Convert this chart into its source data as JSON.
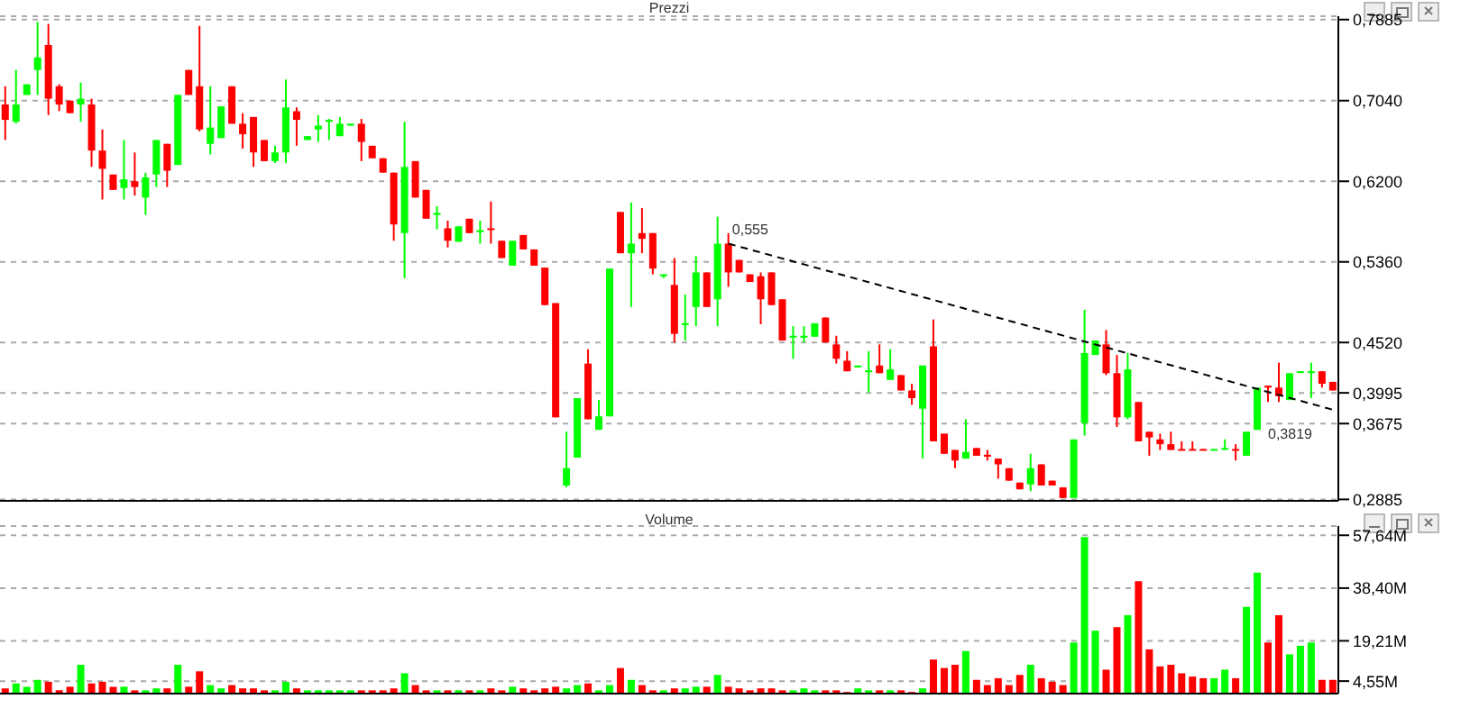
{
  "chart_data": [
    {
      "type": "candlestick",
      "title": "Prezzi",
      "categories": [
        null,
        null,
        null,
        null,
        null,
        null,
        null,
        null,
        null,
        null,
        null,
        null,
        null,
        null,
        null,
        null,
        null,
        null,
        null,
        null,
        null,
        null,
        null,
        null,
        null,
        null,
        null,
        null,
        null,
        null,
        null,
        null,
        null,
        null,
        null,
        null,
        null,
        null,
        null,
        null,
        null,
        null,
        null,
        null,
        null,
        null,
        null,
        null,
        null,
        null,
        null,
        null,
        null,
        null,
        null,
        null,
        null,
        null,
        null,
        null,
        null,
        null,
        null,
        null,
        null,
        null,
        null,
        null,
        null,
        null,
        null,
        null,
        null,
        null,
        null,
        null,
        null,
        null,
        null,
        null,
        null,
        null,
        null,
        null,
        null,
        null,
        null,
        null,
        null,
        null,
        null,
        null,
        null,
        null,
        null,
        null,
        null,
        null,
        null,
        null,
        null,
        null,
        null,
        null,
        null,
        null,
        null,
        null,
        null,
        null,
        null,
        null,
        null,
        null,
        null,
        null,
        null,
        null,
        null,
        null,
        null,
        null,
        null,
        null
      ],
      "ohlc": [
        [
          0.7,
          0.719,
          0.663,
          0.684
        ],
        [
          0.682,
          0.736,
          0.68,
          0.7
        ],
        [
          0.71,
          0.721,
          0.71,
          0.721
        ],
        [
          0.736,
          0.786,
          0.71,
          0.749
        ],
        [
          0.762,
          0.784,
          0.689,
          0.706
        ],
        [
          0.719,
          0.721,
          0.693,
          0.7
        ],
        [
          0.704,
          0.704,
          0.691,
          0.691
        ],
        [
          0.7,
          0.723,
          0.682,
          0.706
        ],
        [
          0.7,
          0.706,
          0.635,
          0.652
        ],
        [
          0.652,
          0.674,
          0.601,
          0.633
        ],
        [
          0.627,
          0.627,
          0.611,
          0.611
        ],
        [
          0.613,
          0.663,
          0.601,
          0.622
        ],
        [
          0.62,
          0.65,
          0.605,
          0.614
        ],
        [
          0.603,
          0.629,
          0.585,
          0.624
        ],
        [
          0.627,
          0.663,
          0.614,
          0.663
        ],
        [
          0.659,
          0.659,
          0.614,
          0.631
        ],
        [
          0.637,
          0.71,
          0.637,
          0.71
        ],
        [
          0.736,
          0.736,
          0.71,
          0.71
        ],
        [
          0.719,
          0.782,
          0.672,
          0.674
        ],
        [
          0.659,
          0.719,
          0.648,
          0.676
        ],
        [
          0.665,
          0.698,
          0.665,
          0.698
        ],
        [
          0.719,
          0.719,
          0.68,
          0.68
        ],
        [
          0.68,
          0.691,
          0.654,
          0.669
        ],
        [
          0.687,
          0.687,
          0.635,
          0.65
        ],
        [
          0.663,
          0.663,
          0.641,
          0.641
        ],
        [
          0.641,
          0.657,
          0.639,
          0.65
        ],
        [
          0.65,
          0.726,
          0.639,
          0.697
        ],
        [
          0.693,
          0.697,
          0.657,
          0.684
        ],
        [
          0.663,
          0.667,
          0.663,
          0.667
        ],
        [
          0.674,
          0.689,
          0.661,
          0.678
        ],
        [
          0.682,
          0.685,
          0.663,
          0.684
        ],
        [
          0.667,
          0.687,
          0.667,
          0.68
        ],
        [
          0.678,
          0.68,
          0.678,
          0.68
        ],
        [
          0.68,
          0.685,
          0.641,
          0.661
        ],
        [
          0.657,
          0.657,
          0.644,
          0.644
        ],
        [
          0.644,
          0.644,
          0.629,
          0.629
        ],
        [
          0.629,
          0.629,
          0.558,
          0.575
        ],
        [
          0.566,
          0.682,
          0.519,
          0.635
        ],
        [
          0.641,
          0.641,
          0.603,
          0.603
        ],
        [
          0.611,
          0.611,
          0.581,
          0.581
        ],
        [
          0.585,
          0.594,
          0.57,
          0.587
        ],
        [
          0.571,
          0.579,
          0.551,
          0.558
        ],
        [
          0.557,
          0.573,
          0.557,
          0.573
        ],
        [
          0.581,
          0.581,
          0.566,
          0.566
        ],
        [
          0.567,
          0.579,
          0.555,
          0.569
        ],
        [
          0.571,
          0.599,
          0.555,
          0.57
        ],
        [
          0.558,
          0.558,
          0.54,
          0.54
        ],
        [
          0.532,
          0.558,
          0.532,
          0.558
        ],
        [
          0.564,
          0.564,
          0.549,
          0.549
        ],
        [
          0.549,
          0.549,
          0.532,
          0.532
        ],
        [
          0.53,
          0.53,
          0.491,
          0.491
        ],
        [
          0.493,
          0.493,
          0.374,
          0.374
        ],
        [
          0.303,
          0.359,
          0.301,
          0.321
        ],
        [
          0.332,
          0.394,
          0.332,
          0.394
        ],
        [
          0.43,
          0.445,
          0.372,
          0.372
        ],
        [
          0.361,
          0.392,
          0.361,
          0.375
        ],
        [
          0.375,
          0.529,
          0.375,
          0.529
        ],
        [
          0.588,
          0.588,
          0.545,
          0.545
        ],
        [
          0.545,
          0.598,
          0.489,
          0.555
        ],
        [
          0.566,
          0.592,
          0.545,
          0.56
        ],
        [
          0.566,
          0.566,
          0.523,
          0.529
        ],
        [
          0.521,
          0.523,
          0.519,
          0.523
        ],
        [
          0.512,
          0.54,
          0.452,
          0.461
        ],
        [
          0.471,
          0.502,
          0.454,
          0.472
        ],
        [
          0.489,
          0.542,
          0.469,
          0.525
        ],
        [
          0.525,
          0.525,
          0.489,
          0.489
        ],
        [
          0.497,
          0.583,
          0.469,
          0.555
        ],
        [
          0.555,
          0.566,
          0.51,
          0.525
        ],
        [
          0.538,
          0.538,
          0.525,
          0.525
        ],
        [
          0.523,
          0.523,
          0.515,
          0.515
        ],
        [
          0.521,
          0.525,
          0.471,
          0.497
        ],
        [
          0.525,
          0.525,
          0.491,
          0.491
        ],
        [
          0.497,
          0.497,
          0.454,
          0.454
        ],
        [
          0.458,
          0.469,
          0.435,
          0.459
        ],
        [
          0.457,
          0.469,
          0.452,
          0.459
        ],
        [
          0.458,
          0.472,
          0.458,
          0.472
        ],
        [
          0.478,
          0.478,
          0.452,
          0.452
        ],
        [
          0.45,
          0.459,
          0.43,
          0.435
        ],
        [
          0.433,
          0.443,
          0.422,
          0.422
        ],
        [
          0.426,
          0.428,
          0.426,
          0.428
        ],
        [
          0.421,
          0.443,
          0.4,
          0.423
        ],
        [
          0.428,
          0.45,
          0.42,
          0.42
        ],
        [
          0.413,
          0.445,
          0.413,
          0.424
        ],
        [
          0.418,
          0.418,
          0.402,
          0.402
        ],
        [
          0.402,
          0.409,
          0.387,
          0.394
        ],
        [
          0.383,
          0.428,
          0.331,
          0.428
        ],
        [
          0.448,
          0.476,
          0.349,
          0.349
        ],
        [
          0.357,
          0.357,
          0.336,
          0.336
        ],
        [
          0.34,
          0.34,
          0.321,
          0.329
        ],
        [
          0.331,
          0.372,
          0.331,
          0.338
        ],
        [
          0.342,
          0.342,
          0.334,
          0.334
        ],
        [
          0.335,
          0.34,
          0.329,
          0.333
        ],
        [
          0.331,
          0.331,
          0.31,
          0.325
        ],
        [
          0.321,
          0.321,
          0.308,
          0.308
        ],
        [
          0.306,
          0.306,
          0.299,
          0.299
        ],
        [
          0.304,
          0.336,
          0.297,
          0.321
        ],
        [
          0.325,
          0.325,
          0.303,
          0.303
        ],
        [
          0.308,
          0.308,
          0.303,
          0.303
        ],
        [
          0.301,
          0.301,
          0.29,
          0.29
        ],
        [
          0.29,
          0.351,
          0.29,
          0.351
        ],
        [
          0.368,
          0.486,
          0.355,
          0.441
        ],
        [
          0.439,
          0.454,
          0.439,
          0.454
        ],
        [
          0.45,
          0.465,
          0.418,
          0.42
        ],
        [
          0.42,
          0.439,
          0.364,
          0.374
        ],
        [
          0.374,
          0.441,
          0.372,
          0.424
        ],
        [
          0.39,
          0.39,
          0.349,
          0.349
        ],
        [
          0.359,
          0.359,
          0.334,
          0.353
        ],
        [
          0.351,
          0.357,
          0.34,
          0.346
        ],
        [
          0.346,
          0.359,
          0.34,
          0.34
        ],
        [
          0.341,
          0.349,
          0.34,
          0.34
        ],
        [
          0.341,
          0.349,
          0.34,
          0.34
        ],
        [
          0.341,
          0.341,
          0.34,
          0.34
        ],
        [
          0.34,
          0.341,
          0.34,
          0.341
        ],
        [
          0.341,
          0.351,
          0.34,
          0.342
        ],
        [
          0.341,
          0.346,
          0.329,
          0.34
        ],
        [
          0.334,
          0.359,
          0.334,
          0.359
        ],
        [
          0.361,
          0.405,
          0.361,
          0.405
        ],
        [
          0.407,
          0.407,
          0.39,
          0.405
        ],
        [
          0.405,
          0.431,
          0.39,
          0.396
        ],
        [
          0.392,
          0.42,
          0.392,
          0.42
        ],
        [
          0.421,
          0.422,
          0.421,
          0.422
        ],
        [
          0.421,
          0.431,
          0.394,
          0.422
        ],
        [
          0.422,
          0.422,
          0.405,
          0.409
        ],
        [
          0.411,
          0.411,
          0.402,
          0.402
        ]
      ],
      "colors": [
        "#ff0000",
        "#00ff00",
        "#00ff00",
        "#00ff00",
        "#ff0000",
        "#ff0000",
        "#ff0000",
        "#00ff00",
        "#ff0000",
        "#ff0000",
        "#ff0000",
        "#00ff00",
        "#ff0000",
        "#00ff00",
        "#00ff00",
        "#ff0000",
        "#00ff00",
        "#ff0000",
        "#ff0000",
        "#00ff00",
        "#00ff00",
        "#ff0000",
        "#ff0000",
        "#ff0000",
        "#ff0000",
        "#00ff00",
        "#00ff00",
        "#ff0000",
        "#00ff00",
        "#00ff00",
        "#00ff00",
        "#00ff00",
        "#00ff00",
        "#ff0000",
        "#ff0000",
        "#ff0000",
        "#ff0000",
        "#00ff00",
        "#ff0000",
        "#ff0000",
        "#00ff00",
        "#ff0000",
        "#00ff00",
        "#ff0000",
        "#00ff00",
        "#ff0000",
        "#ff0000",
        "#00ff00",
        "#ff0000",
        "#ff0000",
        "#ff0000",
        "#ff0000",
        "#00ff00",
        "#00ff00",
        "#ff0000",
        "#00ff00",
        "#00ff00",
        "#ff0000",
        "#00ff00",
        "#ff0000",
        "#ff0000",
        "#00ff00",
        "#ff0000",
        "#00ff00",
        "#00ff00",
        "#ff0000",
        "#00ff00",
        "#ff0000",
        "#ff0000",
        "#ff0000",
        "#ff0000",
        "#ff0000",
        "#ff0000",
        "#00ff00",
        "#00ff00",
        "#00ff00",
        "#ff0000",
        "#ff0000",
        "#ff0000",
        "#00ff00",
        "#00ff00",
        "#ff0000",
        "#00ff00",
        "#ff0000",
        "#ff0000",
        "#00ff00",
        "#ff0000",
        "#ff0000",
        "#ff0000",
        "#00ff00",
        "#ff0000",
        "#ff0000",
        "#ff0000",
        "#ff0000",
        "#ff0000",
        "#00ff00",
        "#ff0000",
        "#ff0000",
        "#ff0000",
        "#00ff00",
        "#00ff00",
        "#00ff00",
        "#ff0000",
        "#ff0000",
        "#00ff00",
        "#ff0000",
        "#ff0000",
        "#ff0000",
        "#ff0000",
        "#ff0000",
        "#ff0000",
        "#ff0000",
        "#00ff00",
        "#00ff00",
        "#ff0000",
        "#00ff00",
        "#00ff00",
        "#ff0000",
        "#ff0000",
        "#00ff00",
        "#00ff00",
        "#00ff00",
        "#ff0000",
        "#ff0000"
      ],
      "series": [
        {
          "type": "line",
          "color": "#000000",
          "line_style": "dashed",
          "values": [
            null,
            null,
            null,
            null,
            null,
            null,
            null,
            null,
            null,
            null,
            null,
            null,
            null,
            null,
            null,
            null,
            null,
            null,
            null,
            null,
            null,
            null,
            null,
            null,
            null,
            null,
            null,
            null,
            null,
            null,
            null,
            null,
            null,
            null,
            null,
            null,
            null,
            null,
            null,
            null,
            null,
            null,
            null,
            null,
            null,
            null,
            null,
            null,
            null,
            null,
            null,
            null,
            null,
            null,
            null,
            null,
            null,
            null,
            null,
            null,
            null,
            null,
            null,
            null,
            null,
            null,
            null,
            0.555,
            null,
            null,
            null,
            null,
            null,
            null,
            null,
            null,
            null,
            null,
            null,
            null,
            null,
            null,
            null,
            null,
            null,
            null,
            null,
            null,
            null,
            null,
            null,
            null,
            null,
            null,
            null,
            null,
            null,
            null,
            null,
            null,
            null,
            null,
            null,
            null,
            null,
            null,
            null,
            null,
            null,
            null,
            null,
            null,
            null,
            null,
            null,
            null,
            null,
            null,
            null,
            null,
            null,
            null,
            null,
            0.3819
          ],
          "value_labels": [
            null,
            null,
            null,
            null,
            null,
            null,
            null,
            null,
            null,
            null,
            null,
            null,
            null,
            null,
            null,
            null,
            null,
            null,
            null,
            null,
            null,
            null,
            null,
            null,
            null,
            null,
            null,
            null,
            null,
            null,
            null,
            null,
            null,
            null,
            null,
            null,
            null,
            null,
            null,
            null,
            null,
            null,
            null,
            null,
            null,
            null,
            null,
            null,
            null,
            null,
            null,
            null,
            null,
            null,
            null,
            null,
            null,
            null,
            null,
            null,
            null,
            null,
            null,
            null,
            null,
            null,
            null,
            "0,555",
            null,
            null,
            null,
            null,
            null,
            null,
            null,
            null,
            null,
            null,
            null,
            null,
            null,
            null,
            null,
            null,
            null,
            null,
            null,
            null,
            null,
            null,
            null,
            null,
            null,
            null,
            null,
            null,
            null,
            null,
            null,
            null,
            null,
            null,
            null,
            null,
            null,
            null,
            null,
            null,
            null,
            null,
            null,
            null,
            null,
            null,
            null,
            null,
            null,
            null,
            null,
            null,
            null,
            null,
            null,
            "0,3819"
          ]
        }
      ],
      "ylim": [
        0.287,
        0.792
      ],
      "yticks": [
        {
          "value": 0.7885,
          "label": "0,7885"
        },
        {
          "value": 0.704,
          "label": "0,7040"
        },
        {
          "value": 0.62,
          "label": "0,6200"
        },
        {
          "value": 0.536,
          "label": "0,5360"
        },
        {
          "value": 0.452,
          "label": "0,4520"
        },
        {
          "value": 0.3995,
          "label": "0,3995"
        },
        {
          "value": 0.3675,
          "label": "0,3675"
        },
        {
          "value": 0.2885,
          "label": "0,2885"
        }
      ],
      "grid": "y"
    },
    {
      "type": "bar",
      "title": "Volume",
      "categories": [
        null,
        null,
        null,
        null,
        null,
        null,
        null,
        null,
        null,
        null,
        null,
        null,
        null,
        null,
        null,
        null,
        null,
        null,
        null,
        null,
        null,
        null,
        null,
        null,
        null,
        null,
        null,
        null,
        null,
        null,
        null,
        null,
        null,
        null,
        null,
        null,
        null,
        null,
        null,
        null,
        null,
        null,
        null,
        null,
        null,
        null,
        null,
        null,
        null,
        null,
        null,
        null,
        null,
        null,
        null,
        null,
        null,
        null,
        null,
        null,
        null,
        null,
        null,
        null,
        null,
        null,
        null,
        null,
        null,
        null,
        null,
        null,
        null,
        null,
        null,
        null,
        null,
        null,
        null,
        null,
        null,
        null,
        null,
        null,
        null,
        null,
        null,
        null,
        null,
        null,
        null,
        null,
        null,
        null,
        null,
        null,
        null,
        null,
        null,
        null,
        null,
        null,
        null,
        null,
        null,
        null,
        null,
        null,
        null,
        null,
        null,
        null,
        null,
        null,
        null,
        null,
        null,
        null,
        null,
        null,
        null,
        null,
        null,
        null
      ],
      "values": [
        1.9,
        3.7,
        2.5,
        5.0,
        4.3,
        1.2,
        2.5,
        10.5,
        3.7,
        4.3,
        2.5,
        2.5,
        1.2,
        1.2,
        1.9,
        1.9,
        10.5,
        2.5,
        8.1,
        3.1,
        1.9,
        3.1,
        1.9,
        1.9,
        1.2,
        1.2,
        4.3,
        1.9,
        1.2,
        1.2,
        1.2,
        1.2,
        1.2,
        1.2,
        1.2,
        1.2,
        1.9,
        7.4,
        3.1,
        1.2,
        1.2,
        1.2,
        1.2,
        1.2,
        1.2,
        1.9,
        1.2,
        2.5,
        1.9,
        1.2,
        1.9,
        2.5,
        1.9,
        3.1,
        3.7,
        1.2,
        3.1,
        9.3,
        5.0,
        3.1,
        1.2,
        1.2,
        1.9,
        1.9,
        2.5,
        2.5,
        6.8,
        2.5,
        1.9,
        1.2,
        1.9,
        1.9,
        1.2,
        1.2,
        1.9,
        1.2,
        1.2,
        1.2,
        0.6,
        1.9,
        1.2,
        1.2,
        1.2,
        1.2,
        0.6,
        1.9,
        12.4,
        9.3,
        10.5,
        15.5,
        5.0,
        3.1,
        5.6,
        3.1,
        6.8,
        10.5,
        5.6,
        4.3,
        3.1,
        18.6,
        57.0,
        22.9,
        8.7,
        24.2,
        28.5,
        40.9,
        16.1,
        9.9,
        10.5,
        7.4,
        6.2,
        5.6,
        5.6,
        8.7,
        5.6,
        31.6,
        44.0,
        18.6,
        28.5,
        14.3,
        17.4,
        18.6,
        5.0,
        5.0
      ],
      "colors": [
        "#ff0000",
        "#00ff00",
        "#00ff00",
        "#00ff00",
        "#ff0000",
        "#ff0000",
        "#ff0000",
        "#00ff00",
        "#ff0000",
        "#ff0000",
        "#ff0000",
        "#00ff00",
        "#ff0000",
        "#00ff00",
        "#00ff00",
        "#ff0000",
        "#00ff00",
        "#ff0000",
        "#ff0000",
        "#00ff00",
        "#00ff00",
        "#ff0000",
        "#ff0000",
        "#ff0000",
        "#ff0000",
        "#00ff00",
        "#00ff00",
        "#ff0000",
        "#00ff00",
        "#00ff00",
        "#00ff00",
        "#00ff00",
        "#00ff00",
        "#ff0000",
        "#ff0000",
        "#ff0000",
        "#ff0000",
        "#00ff00",
        "#ff0000",
        "#ff0000",
        "#00ff00",
        "#ff0000",
        "#00ff00",
        "#ff0000",
        "#00ff00",
        "#ff0000",
        "#ff0000",
        "#00ff00",
        "#ff0000",
        "#ff0000",
        "#ff0000",
        "#ff0000",
        "#00ff00",
        "#00ff00",
        "#ff0000",
        "#00ff00",
        "#00ff00",
        "#ff0000",
        "#00ff00",
        "#ff0000",
        "#ff0000",
        "#00ff00",
        "#ff0000",
        "#00ff00",
        "#00ff00",
        "#ff0000",
        "#00ff00",
        "#ff0000",
        "#ff0000",
        "#ff0000",
        "#ff0000",
        "#ff0000",
        "#ff0000",
        "#00ff00",
        "#00ff00",
        "#00ff00",
        "#ff0000",
        "#ff0000",
        "#ff0000",
        "#00ff00",
        "#00ff00",
        "#ff0000",
        "#00ff00",
        "#ff0000",
        "#ff0000",
        "#00ff00",
        "#ff0000",
        "#ff0000",
        "#ff0000",
        "#00ff00",
        "#ff0000",
        "#ff0000",
        "#ff0000",
        "#ff0000",
        "#ff0000",
        "#00ff00",
        "#ff0000",
        "#ff0000",
        "#ff0000",
        "#00ff00",
        "#00ff00",
        "#00ff00",
        "#ff0000",
        "#ff0000",
        "#00ff00",
        "#ff0000",
        "#ff0000",
        "#ff0000",
        "#ff0000",
        "#ff0000",
        "#ff0000",
        "#ff0000",
        "#00ff00",
        "#00ff00",
        "#ff0000",
        "#00ff00",
        "#00ff00",
        "#ff0000",
        "#ff0000",
        "#00ff00",
        "#00ff00",
        "#00ff00",
        "#ff0000",
        "#ff0000"
      ],
      "ylim": [
        0,
        61
      ],
      "yticks": [
        {
          "value": 57.64,
          "label": "57,64M"
        },
        {
          "value": 38.4,
          "label": "38,40M"
        },
        {
          "value": 19.21,
          "label": "19,21M"
        },
        {
          "value": 4.55,
          "label": "4,55M"
        }
      ],
      "grid": "y"
    }
  ]
}
